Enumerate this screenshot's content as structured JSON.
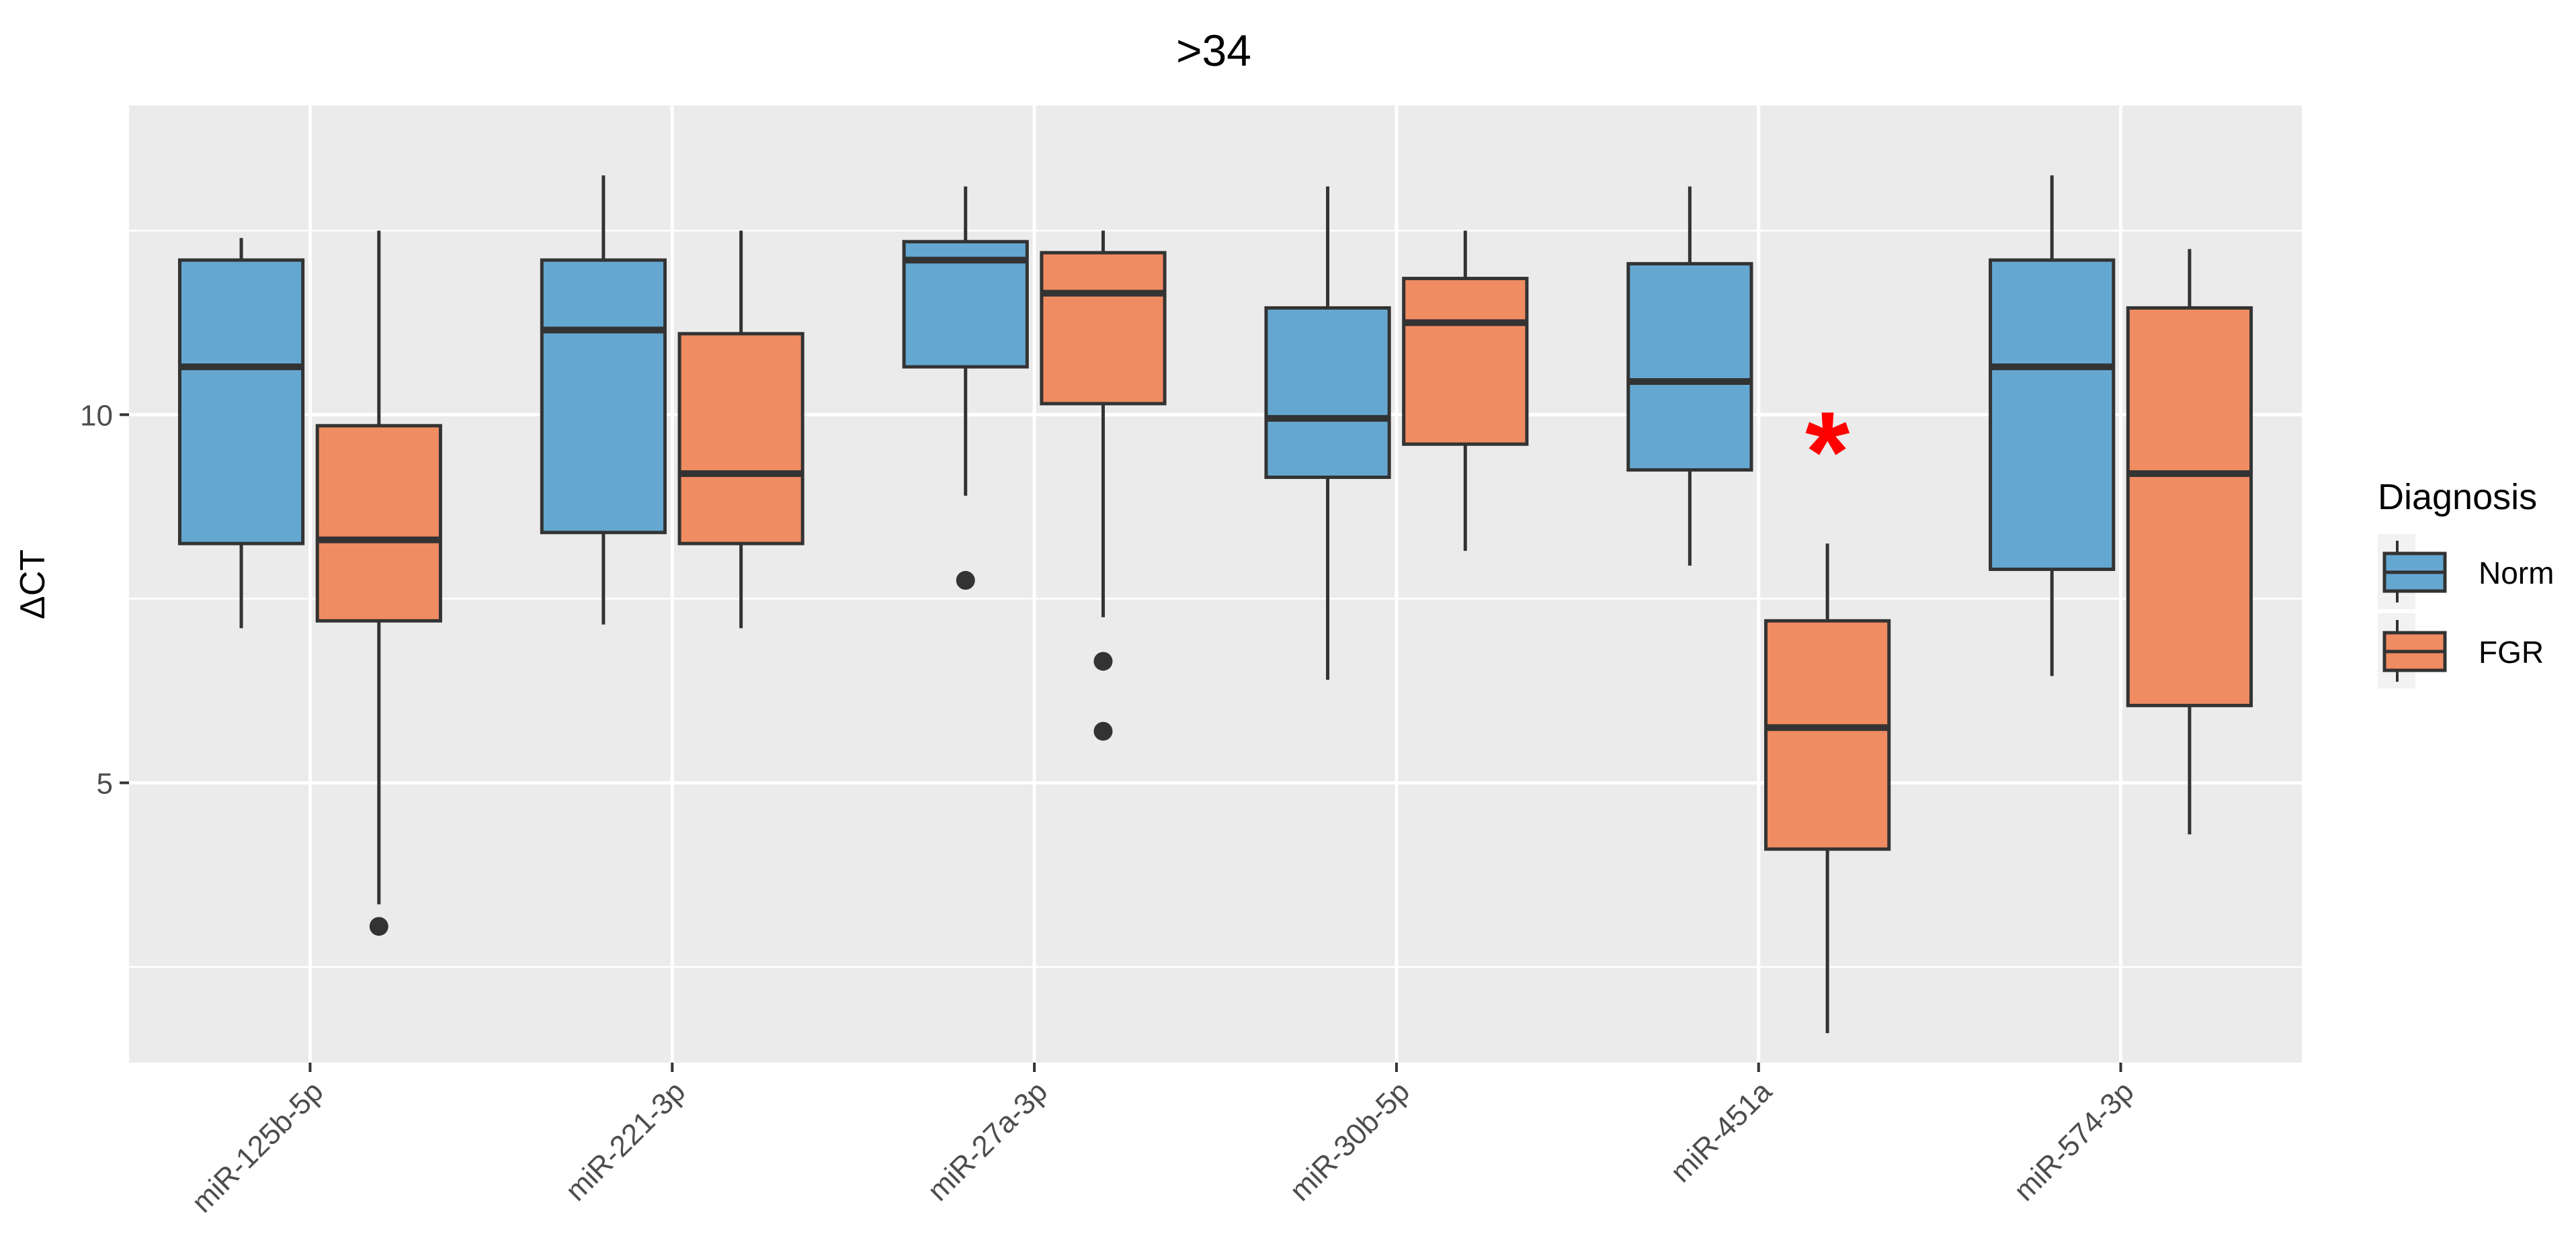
{
  "chart_data": {
    "type": "boxplot",
    "title": ">34",
    "xlabel": "",
    "ylabel": "ΔCT",
    "ylim": [
      1.2,
      14.2
    ],
    "yticks": [
      5,
      10
    ],
    "yminor": [
      2.5,
      7.5,
      12.5
    ],
    "grid": true,
    "legend": {
      "title": "Diagnosis",
      "position": "right"
    },
    "categories": [
      "miR-125b-5p",
      "miR-221-3p",
      "miR-27a-3p",
      "miR-30b-5p",
      "miR-451a",
      "miR-574-3p"
    ],
    "series": [
      {
        "name": "Norm",
        "color": "#64a8d1",
        "boxes": [
          {
            "lower_whisker": 7.1,
            "q1": 8.25,
            "median": 10.65,
            "q3": 12.1,
            "upper_whisker": 12.4,
            "outliers": []
          },
          {
            "lower_whisker": 7.15,
            "q1": 8.4,
            "median": 11.15,
            "q3": 12.1,
            "upper_whisker": 13.25,
            "outliers": []
          },
          {
            "lower_whisker": 8.9,
            "q1": 10.65,
            "median": 12.1,
            "q3": 12.35,
            "upper_whisker": 13.1,
            "outliers": [
              7.75
            ]
          },
          {
            "lower_whisker": 6.4,
            "q1": 9.15,
            "median": 9.95,
            "q3": 11.45,
            "upper_whisker": 13.1,
            "outliers": []
          },
          {
            "lower_whisker": 7.95,
            "q1": 9.25,
            "median": 10.45,
            "q3": 12.05,
            "upper_whisker": 13.1,
            "outliers": []
          },
          {
            "lower_whisker": 6.45,
            "q1": 7.9,
            "median": 10.65,
            "q3": 12.1,
            "upper_whisker": 13.25,
            "outliers": []
          }
        ]
      },
      {
        "name": "FGR",
        "color": "#f08c62",
        "boxes": [
          {
            "lower_whisker": 3.35,
            "q1": 7.2,
            "median": 8.3,
            "q3": 9.85,
            "upper_whisker": 12.5,
            "outliers": [
              3.05
            ]
          },
          {
            "lower_whisker": 7.1,
            "q1": 8.25,
            "median": 9.2,
            "q3": 11.1,
            "upper_whisker": 12.5,
            "outliers": []
          },
          {
            "lower_whisker": 7.25,
            "q1": 10.15,
            "median": 11.65,
            "q3": 12.2,
            "upper_whisker": 12.5,
            "outliers": [
              6.65,
              5.7
            ]
          },
          {
            "lower_whisker": 8.15,
            "q1": 9.6,
            "median": 11.25,
            "q3": 11.85,
            "upper_whisker": 12.5,
            "outliers": []
          },
          {
            "lower_whisker": 1.6,
            "q1": 4.1,
            "median": 5.75,
            "q3": 7.2,
            "upper_whisker": 8.25,
            "outliers": []
          },
          {
            "lower_whisker": 4.3,
            "q1": 6.05,
            "median": 9.2,
            "q3": 11.45,
            "upper_whisker": 12.25,
            "outliers": []
          }
        ]
      }
    ],
    "annotations": [
      {
        "text": "*",
        "category": "miR-451a",
        "series": "FGR",
        "y": 9.6,
        "color": "#ff0000"
      }
    ]
  }
}
